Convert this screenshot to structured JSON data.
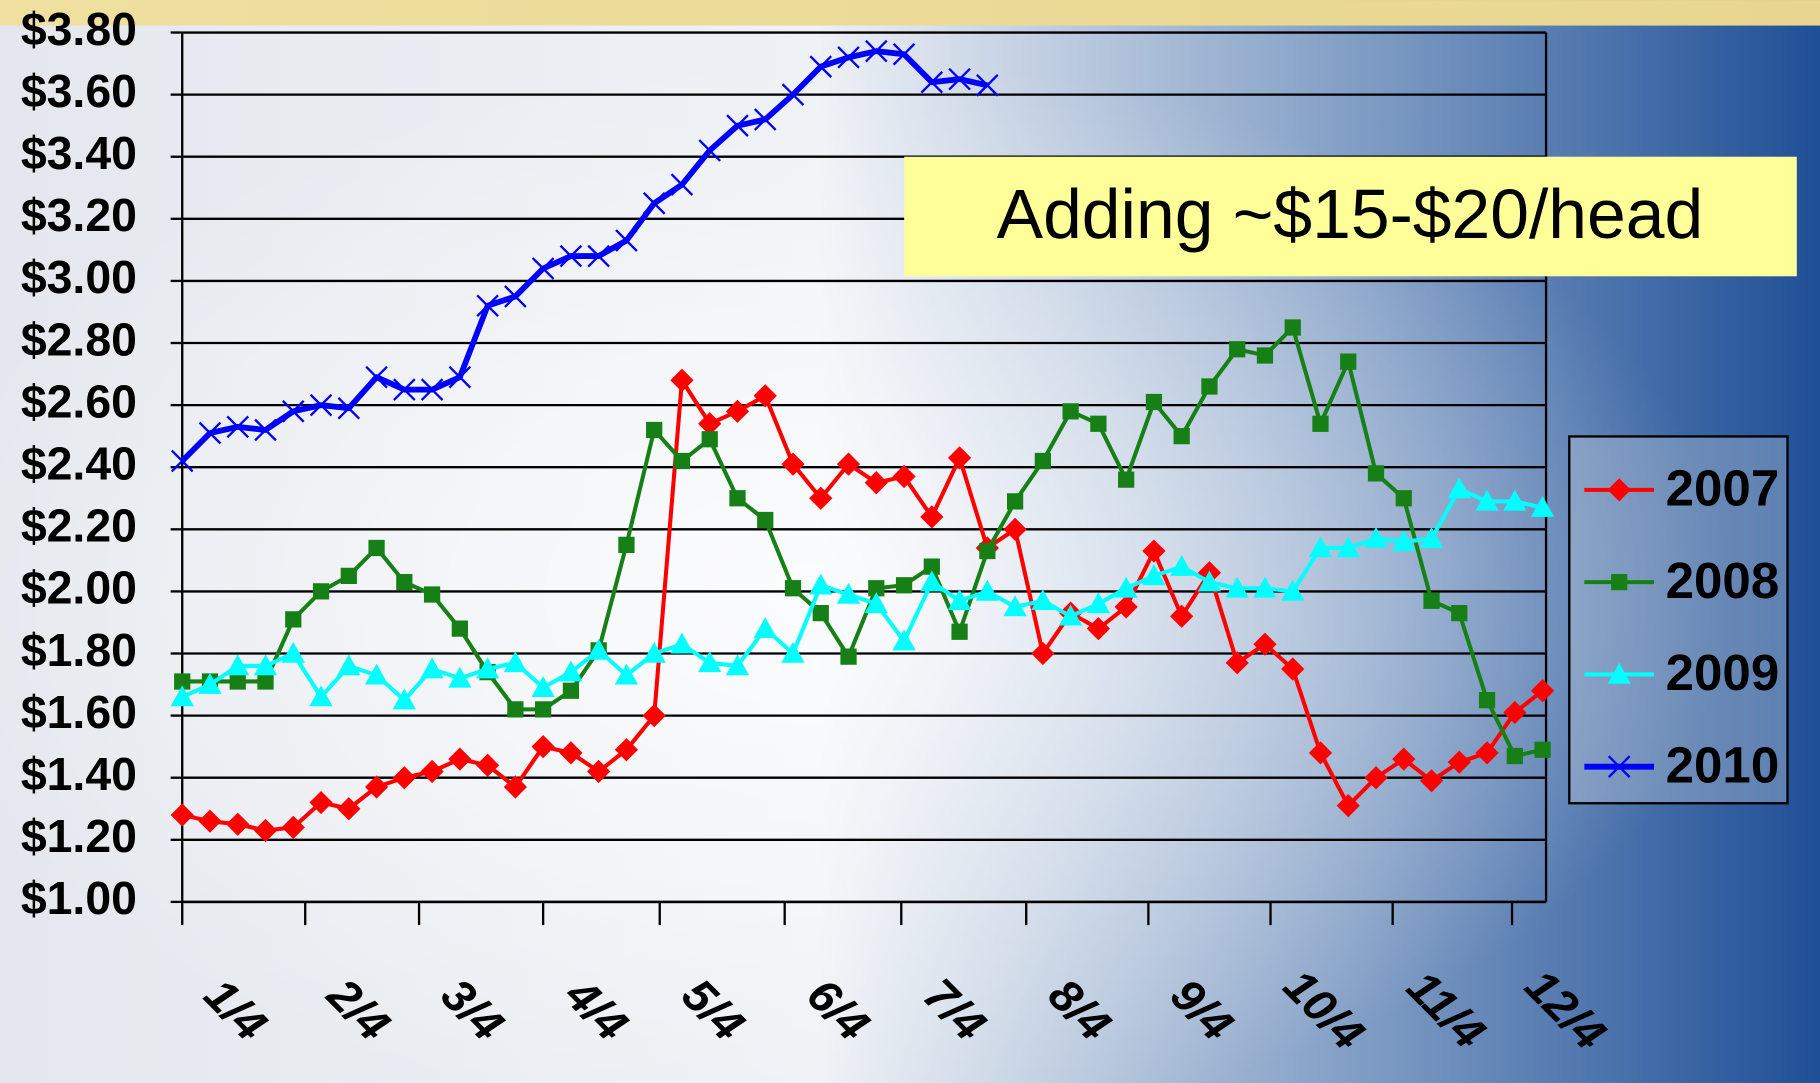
{
  "chart_data": {
    "type": "line",
    "annotation": "Adding ~$15-$20/head",
    "xlim": [
      0,
      49
    ],
    "xticks": [
      {
        "value": 0,
        "label": "1/4"
      },
      {
        "value": 4.43,
        "label": "2/4"
      },
      {
        "value": 8.53,
        "label": "3/4"
      },
      {
        "value": 13.0,
        "label": "4/4"
      },
      {
        "value": 17.2,
        "label": "5/4"
      },
      {
        "value": 21.7,
        "label": "6/4"
      },
      {
        "value": 25.9,
        "label": "7/4"
      },
      {
        "value": 30.4,
        "label": "8/4"
      },
      {
        "value": 34.8,
        "label": "9/4"
      },
      {
        "value": 39.2,
        "label": "10/4"
      },
      {
        "value": 43.6,
        "label": "11/4"
      },
      {
        "value": 47.9,
        "label": "12/4"
      }
    ],
    "ylim": [
      1.0,
      3.8
    ],
    "yticks": [
      {
        "value": 1.0,
        "label": "$1.00"
      },
      {
        "value": 1.2,
        "label": "$1.20"
      },
      {
        "value": 1.4,
        "label": "$1.40"
      },
      {
        "value": 1.6,
        "label": "$1.60"
      },
      {
        "value": 1.8,
        "label": "$1.80"
      },
      {
        "value": 2.0,
        "label": "$2.00"
      },
      {
        "value": 2.2,
        "label": "$2.20"
      },
      {
        "value": 2.4,
        "label": "$2.40"
      },
      {
        "value": 2.6,
        "label": "$2.60"
      },
      {
        "value": 2.8,
        "label": "$2.80"
      },
      {
        "value": 3.0,
        "label": "$3.00"
      },
      {
        "value": 3.2,
        "label": "$3.20"
      },
      {
        "value": 3.4,
        "label": "$3.40"
      },
      {
        "value": 3.6,
        "label": "$3.60"
      },
      {
        "value": 3.8,
        "label": "$3.80"
      }
    ],
    "grid": true,
    "legend": "right",
    "series": [
      {
        "name": "2007",
        "color": "#ff0000",
        "marker": "diamond",
        "values": [
          1.28,
          1.26,
          1.25,
          1.23,
          1.24,
          1.32,
          1.3,
          1.37,
          1.4,
          1.42,
          1.46,
          1.44,
          1.37,
          1.5,
          1.48,
          1.42,
          1.49,
          1.6,
          2.68,
          2.54,
          2.58,
          2.63,
          2.41,
          2.3,
          2.41,
          2.35,
          2.37,
          2.24,
          2.43,
          2.14,
          2.2,
          1.8,
          1.93,
          1.88,
          1.95,
          2.13,
          1.92,
          2.06,
          1.77,
          1.83,
          1.75,
          1.48,
          1.31,
          1.4,
          1.46,
          1.39,
          1.45,
          1.48,
          1.61,
          1.68
        ]
      },
      {
        "name": "2008",
        "color": "#168016",
        "marker": "square",
        "values": [
          1.71,
          1.71,
          1.71,
          1.71,
          1.91,
          2.0,
          2.05,
          2.14,
          2.03,
          1.99,
          1.88,
          1.74,
          1.62,
          1.62,
          1.68,
          1.81,
          2.15,
          2.52,
          2.42,
          2.49,
          2.3,
          2.23,
          2.01,
          1.93,
          1.79,
          2.01,
          2.02,
          2.08,
          1.87,
          2.13,
          2.29,
          2.42,
          2.58,
          2.54,
          2.36,
          2.61,
          2.5,
          2.66,
          2.78,
          2.76,
          2.85,
          2.54,
          2.74,
          2.38,
          2.3,
          1.97,
          1.93,
          1.65,
          1.47,
          1.49
        ]
      },
      {
        "name": "2009",
        "color": "#00ffff",
        "marker": "triangle",
        "values": [
          1.66,
          1.7,
          1.76,
          1.76,
          1.8,
          1.66,
          1.76,
          1.73,
          1.65,
          1.75,
          1.72,
          1.75,
          1.77,
          1.69,
          1.74,
          1.81,
          1.73,
          1.8,
          1.83,
          1.77,
          1.76,
          1.88,
          1.8,
          2.02,
          1.99,
          1.96,
          1.84,
          2.03,
          1.97,
          2.0,
          1.95,
          1.97,
          1.92,
          1.96,
          2.01,
          2.05,
          2.08,
          2.03,
          2.01,
          2.01,
          2.0,
          2.14,
          2.14,
          2.17,
          2.16,
          2.17,
          2.33,
          2.29,
          2.29,
          2.27
        ]
      },
      {
        "name": "2010",
        "color": "#0000ff",
        "marker": "x",
        "values": [
          2.42,
          2.51,
          2.53,
          2.52,
          2.58,
          2.6,
          2.59,
          2.69,
          2.65,
          2.65,
          2.69,
          2.92,
          2.95,
          3.04,
          3.08,
          3.08,
          3.13,
          3.25,
          3.31,
          3.42,
          3.5,
          3.52,
          3.6,
          3.69,
          3.72,
          3.74,
          3.73,
          3.64,
          3.65,
          3.63,
          null,
          null,
          null,
          null,
          null,
          null,
          null,
          null,
          null,
          null,
          null,
          null,
          null,
          null,
          null,
          null,
          null,
          null,
          null,
          null
        ]
      }
    ]
  }
}
